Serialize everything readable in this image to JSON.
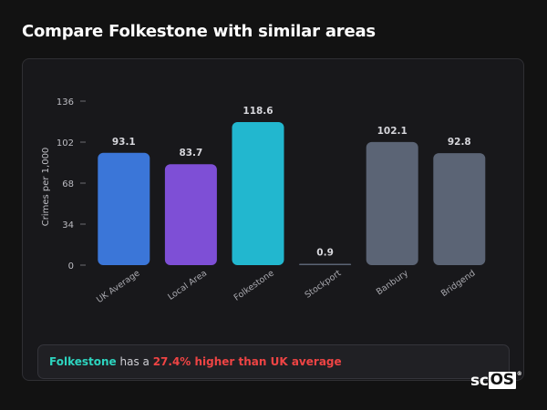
{
  "title": "Compare Folkestone with similar areas",
  "chart_data": {
    "type": "bar",
    "ylabel": "Crimes per 1,000",
    "xlabel": "",
    "ylim": [
      0,
      136
    ],
    "yticks": [
      0,
      34,
      68,
      102,
      136
    ],
    "grid": false,
    "categories": [
      "UK Average",
      "Local Area",
      "Folkestone",
      "Stockport",
      "Banbury",
      "Bridgend"
    ],
    "values": [
      93.1,
      83.7,
      118.6,
      0.9,
      102.1,
      92.8
    ],
    "value_labels": [
      "93.1",
      "83.7",
      "118.6",
      "0.9",
      "102.1",
      "92.8"
    ],
    "colors": [
      "#3b76d8",
      "#7e4fd6",
      "#22b7cf",
      "#5b6475",
      "#5b6475",
      "#5b6475"
    ]
  },
  "summary": {
    "area": "Folkestone",
    "middle": " has a ",
    "difference": "27.4% higher than UK average"
  },
  "brand": {
    "left": "sc",
    "boxed": "OS",
    "mark": "®"
  }
}
